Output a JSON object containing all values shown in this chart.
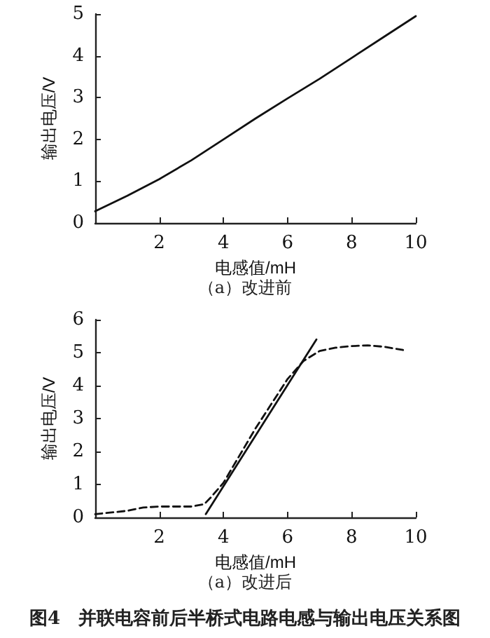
{
  "chart_data": [
    {
      "type": "line",
      "xlabel": "电感值/mH",
      "ylabel": "输出电压/V",
      "annotations": [
        "（a）改进前"
      ],
      "xlim": [
        0,
        10
      ],
      "xticks": [
        2,
        4,
        6,
        8,
        10
      ],
      "ylim": [
        0,
        5
      ],
      "yticks": [
        0,
        1,
        2,
        3,
        4,
        5
      ],
      "grid": false,
      "marker": "none",
      "series": [
        {
          "color": "#111111",
          "line_style": "solid",
          "x": [
            0,
            1,
            2,
            3,
            4,
            5,
            6,
            7,
            8,
            9,
            10
          ],
          "values": [
            0.28,
            0.65,
            1.05,
            1.5,
            2.0,
            2.5,
            2.98,
            3.45,
            3.95,
            4.45,
            4.95
          ]
        }
      ]
    },
    {
      "type": "line",
      "xlabel": "电感值/mH",
      "ylabel": "输出电压/V",
      "annotations": [
        "（a）改进后",
        "图4　并联电容前后半桥式电路电感与输出电压关系图"
      ],
      "xlim": [
        0,
        10
      ],
      "xticks": [
        2,
        4,
        6,
        8,
        10
      ],
      "ylim": [
        0,
        6
      ],
      "yticks": [
        0,
        1,
        2,
        3,
        4,
        5,
        6
      ],
      "grid": false,
      "marker": "none",
      "series": [
        {
          "color": "#111111",
          "line_style": "dashed",
          "x": [
            0,
            1,
            1.5,
            2,
            3,
            3.4,
            3.6,
            4,
            5,
            6,
            6.5,
            7,
            7.5,
            8,
            8.5,
            9,
            9.6
          ],
          "values": [
            0.1,
            0.2,
            0.3,
            0.33,
            0.33,
            0.4,
            0.6,
            1.05,
            2.7,
            4.2,
            4.75,
            5.05,
            5.15,
            5.2,
            5.22,
            5.18,
            5.08
          ]
        },
        {
          "color": "#111111",
          "line_style": "solid",
          "x": [
            3.45,
            6.9
          ],
          "values": [
            0.1,
            5.4
          ]
        }
      ]
    }
  ]
}
